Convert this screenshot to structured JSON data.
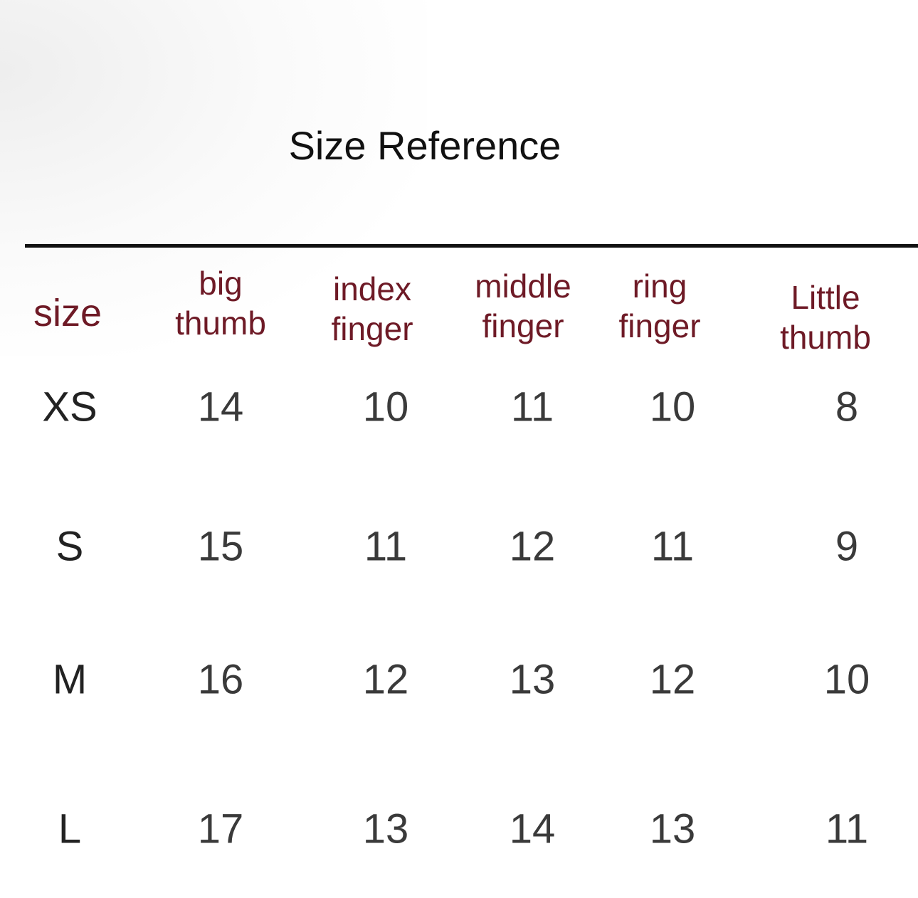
{
  "title": "Size Reference",
  "colors": {
    "header": "#6e1a26",
    "values": "#3a3a3a",
    "rule": "#111111"
  },
  "headers": [
    {
      "line1": "size",
      "line2": ""
    },
    {
      "line1": "big",
      "line2": "thumb"
    },
    {
      "line1": "index",
      "line2": "finger"
    },
    {
      "line1": "middle",
      "line2": "finger"
    },
    {
      "line1": "ring",
      "line2": "finger"
    },
    {
      "line1": "Little",
      "line2": "thumb"
    }
  ],
  "rows": [
    {
      "size": "XS",
      "values": [
        "14",
        "10",
        "11",
        "10",
        "8"
      ]
    },
    {
      "size": "S",
      "values": [
        "15",
        "11",
        "12",
        "11",
        "9"
      ]
    },
    {
      "size": "M",
      "values": [
        "16",
        "12",
        "13",
        "12",
        "10"
      ]
    },
    {
      "size": "L",
      "values": [
        "17",
        "13",
        "14",
        "13",
        "11"
      ]
    }
  ]
}
